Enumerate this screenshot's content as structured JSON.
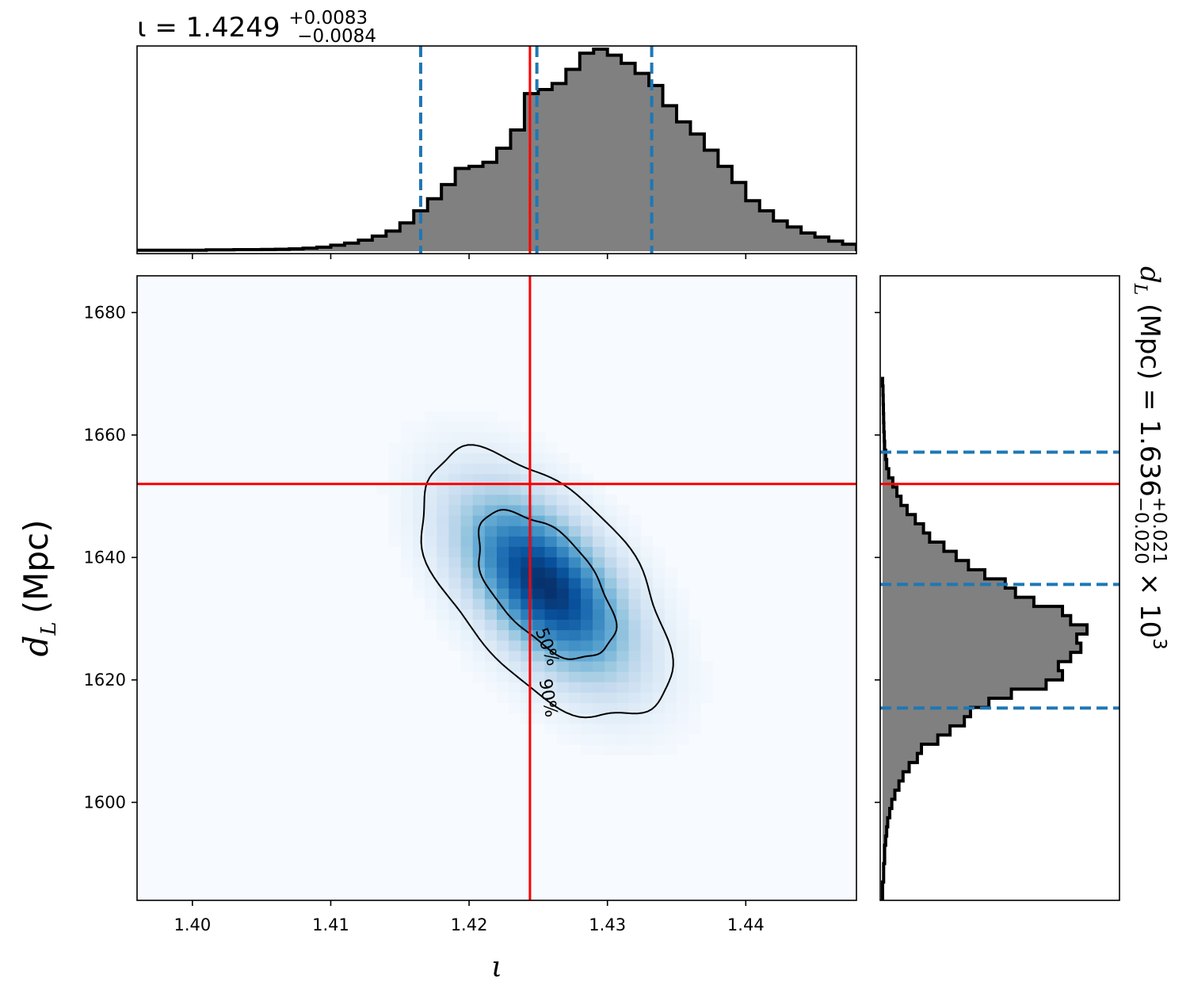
{
  "chart_data": [
    {
      "type": "histogram",
      "panel": "top-marginal",
      "parameter_symbol": "ι",
      "title_prefix": "ι = 1.4249",
      "title_plus": "+0.0083",
      "title_minus": "−0.0084",
      "median": 1.4249,
      "truth": 1.4244,
      "quantiles": [
        1.4165,
        1.4249,
        1.4332
      ],
      "xlim": [
        1.396,
        1.448
      ],
      "bin_edges_start": 1.396,
      "bin_width": 0.001,
      "counts": [
        0.005,
        0.005,
        0.005,
        0.005,
        0.005,
        0.007,
        0.007,
        0.008,
        0.008,
        0.009,
        0.01,
        0.012,
        0.015,
        0.02,
        0.03,
        0.04,
        0.055,
        0.075,
        0.1,
        0.14,
        0.2,
        0.26,
        0.33,
        0.41,
        0.42,
        0.44,
        0.51,
        0.6,
        0.78,
        0.8,
        0.83,
        0.9,
        0.98,
        1.0,
        0.97,
        0.93,
        0.88,
        0.82,
        0.72,
        0.64,
        0.58,
        0.5,
        0.42,
        0.34,
        0.25,
        0.2,
        0.15,
        0.12,
        0.09,
        0.07,
        0.05,
        0.035
      ]
    },
    {
      "type": "heatmap",
      "panel": "joint",
      "xlabel": "ι",
      "ylabel_symbol": "d",
      "ylabel_sub": "L",
      "ylabel_unit": "(Mpc)",
      "xlim": [
        1.396,
        1.448
      ],
      "ylim": [
        1584,
        1686
      ],
      "xticks": [
        "1.40",
        "1.41",
        "1.42",
        "1.43",
        "1.44"
      ],
      "yticks": [
        "1600",
        "1620",
        "1640",
        "1660",
        "1680"
      ],
      "mean": [
        1.4255,
        1.6355
      ],
      "sigma": [
        0.0042,
        10.2
      ],
      "correlation": -0.55,
      "truth": [
        1.4244,
        1652.0
      ],
      "contours": [
        {
          "label": "50%",
          "level": 0.5
        },
        {
          "label": "90%",
          "level": 0.9
        }
      ],
      "colormap": [
        "#f7fbff",
        "#deebf7",
        "#c6dbef",
        "#9ecae1",
        "#6baed6",
        "#4292c6",
        "#2171b5",
        "#08519c",
        "#08306b"
      ]
    },
    {
      "type": "histogram",
      "panel": "right-marginal",
      "orientation": "horizontal",
      "title_symbol": "d",
      "title_sub": "L",
      "title_prefix": " (Mpc) = 1.636",
      "title_plus": "+0.021",
      "title_minus": "−0.020",
      "title_suffix": " × 10",
      "title_exp": "3",
      "median": 1635.6,
      "truth": 1652.0,
      "quantiles": [
        1615.4,
        1635.6,
        1657.2
      ],
      "ylim": [
        1584,
        1686
      ],
      "bin_edges_start": 1584,
      "bin_width": 1.5,
      "counts": [
        0.0,
        0.0,
        0.005,
        0.005,
        0.01,
        0.01,
        0.015,
        0.02,
        0.025,
        0.035,
        0.045,
        0.06,
        0.08,
        0.1,
        0.13,
        0.17,
        0.19,
        0.27,
        0.33,
        0.4,
        0.43,
        0.52,
        0.63,
        0.8,
        0.88,
        0.86,
        0.92,
        0.97,
        0.95,
        1.0,
        0.92,
        0.88,
        0.74,
        0.65,
        0.6,
        0.5,
        0.42,
        0.36,
        0.3,
        0.23,
        0.2,
        0.16,
        0.12,
        0.09,
        0.07,
        0.05,
        0.03,
        0.02,
        0.015,
        0.01,
        0.008,
        0.006,
        0.005,
        0.004,
        0.003,
        0.002,
        0.0
      ]
    }
  ],
  "colors": {
    "truth": "#ff0000",
    "quantile": "#1f77b4",
    "hist_fill": "#808080",
    "hist_edge": "#000000",
    "contour": "#000000"
  }
}
